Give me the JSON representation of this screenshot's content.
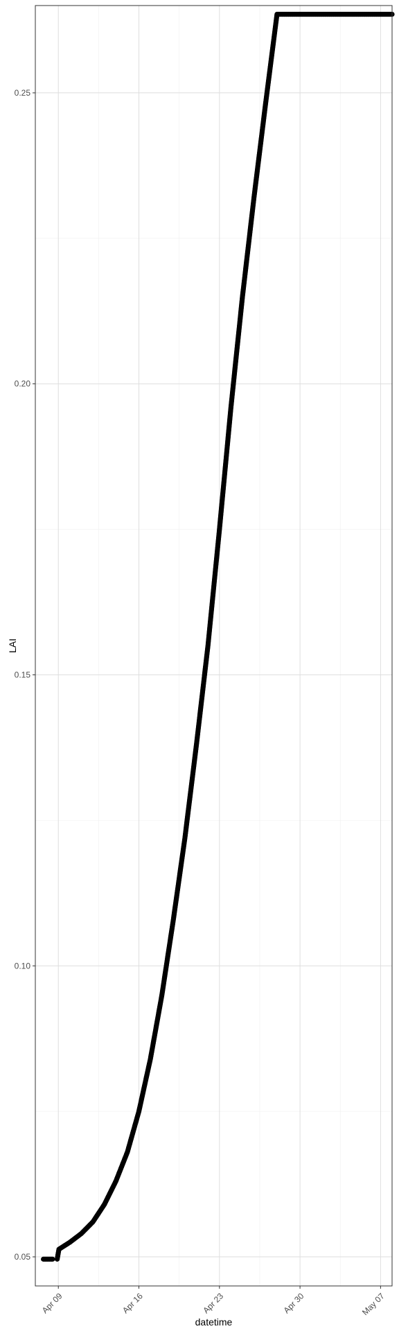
{
  "chart_data": {
    "type": "scatter",
    "xlabel": "datetime",
    "ylabel": "LAI",
    "x_range": [
      "2025-04-07",
      "2025-05-08"
    ],
    "ylim": [
      0.045,
      0.265
    ],
    "y_ticks": [
      0.05,
      0.1,
      0.15,
      0.2,
      0.25
    ],
    "y_tick_labels": [
      "0.05",
      "0.10",
      "0.15",
      "0.20",
      "0.25"
    ],
    "x_ticks": [
      "2025-04-09",
      "2025-04-16",
      "2025-04-23",
      "2025-04-30",
      "2025-05-07"
    ],
    "x_tick_labels": [
      "Apr 09",
      "Apr 16",
      "Apr 23",
      "Apr 30",
      "May 07"
    ],
    "grid": true,
    "series": [
      {
        "color": "#000000",
        "x": [
          "2025-04-08",
          "2025-04-08",
          "2025-04-09",
          "2025-04-09",
          "2025-04-10",
          "2025-04-11",
          "2025-04-12",
          "2025-04-13",
          "2025-04-14",
          "2025-04-15",
          "2025-04-16",
          "2025-04-17",
          "2025-04-18",
          "2025-04-19",
          "2025-04-20",
          "2025-04-21",
          "2025-04-22",
          "2025-04-23",
          "2025-04-24",
          "2025-04-25",
          "2025-04-26",
          "2025-04-27",
          "2025-04-28",
          "2025-04-29",
          "2025-05-01",
          "2025-05-03",
          "2025-05-05",
          "2025-05-07",
          "2025-05-08"
        ],
        "y": [
          0.0496,
          0.0496,
          0.0496,
          0.0513,
          0.0525,
          0.054,
          0.056,
          0.059,
          0.063,
          0.068,
          0.075,
          0.084,
          0.095,
          0.108,
          0.122,
          0.138,
          0.155,
          0.175,
          0.196,
          0.215,
          0.232,
          0.248,
          0.2635,
          0.2635,
          0.2635,
          0.2635,
          0.2635,
          0.2635,
          0.2635
        ]
      }
    ]
  }
}
